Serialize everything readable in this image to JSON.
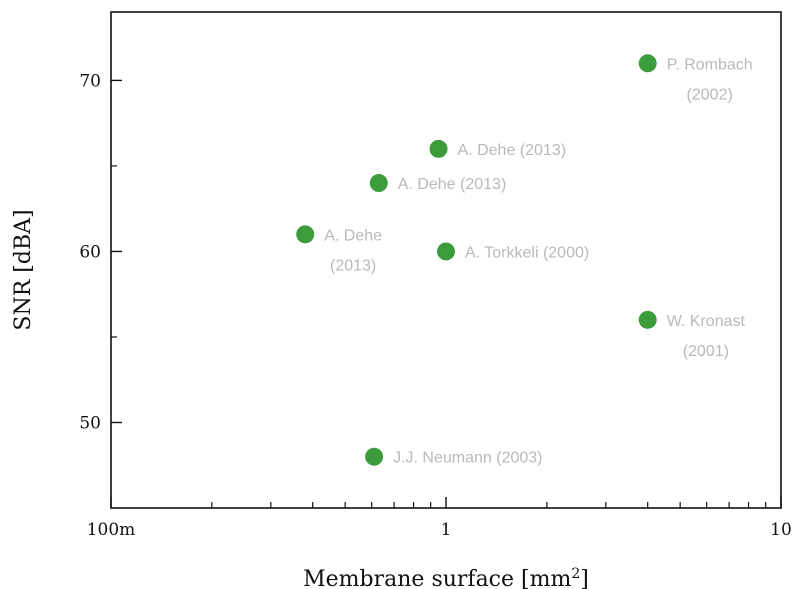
{
  "chart_data": {
    "type": "scatter",
    "title": "",
    "xlabel": "Membrane surface [mm",
    "xlabel_sup": "2",
    "xlabel_end": "]",
    "ylabel": "SNR [dBA]",
    "x_scale": "log",
    "xlim": [
      0.1,
      10
    ],
    "ylim": [
      45,
      74
    ],
    "grid": false,
    "x_ticks": [
      {
        "value": 0.1,
        "label": "100m"
      },
      {
        "value": 1,
        "label": "1"
      },
      {
        "value": 10,
        "label": "10"
      }
    ],
    "y_ticks": [
      {
        "value": 50,
        "label": "50"
      },
      {
        "value": 60,
        "label": "60"
      },
      {
        "value": 70,
        "label": "70"
      }
    ],
    "marker_color": "#3c9c3c",
    "label_color": "#b9b9b9",
    "points": [
      {
        "x": 4.0,
        "y": 71,
        "label": [
          "P. Rombach",
          "(2002)"
        ]
      },
      {
        "x": 0.95,
        "y": 66,
        "label": [
          "A. Dehe (2013)"
        ]
      },
      {
        "x": 0.63,
        "y": 64,
        "label": [
          "A. Dehe (2013)"
        ]
      },
      {
        "x": 0.38,
        "y": 61,
        "label": [
          "A. Dehe",
          "(2013)"
        ]
      },
      {
        "x": 1.0,
        "y": 60,
        "label": [
          "A. Torkkeli (2000)"
        ]
      },
      {
        "x": 4.0,
        "y": 56,
        "label": [
          "W. Kronast",
          "(2001)"
        ]
      },
      {
        "x": 0.61,
        "y": 48,
        "label": [
          "J.J. Neumann (2003)"
        ]
      }
    ]
  }
}
